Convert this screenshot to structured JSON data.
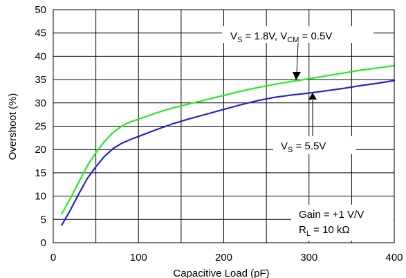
{
  "chart_data": {
    "type": "line",
    "xlabel": "Capacitive Load (pF)",
    "ylabel": "Overshoot (%)",
    "xlim": [
      0,
      400
    ],
    "ylim": [
      0,
      50
    ],
    "x_ticks": [
      0,
      100,
      200,
      300,
      400
    ],
    "y_ticks": [
      0,
      5,
      10,
      15,
      20,
      25,
      30,
      35,
      40,
      45,
      50
    ],
    "grid": true,
    "series": [
      {
        "name": "VS = 1.8V, VCM = 0.5V",
        "color": "#22ee22",
        "x": [
          10,
          20,
          30,
          40,
          50,
          60,
          70,
          80,
          90,
          100,
          120,
          140,
          160,
          180,
          200,
          220,
          240,
          260,
          280,
          300,
          320,
          340,
          360,
          380,
          400
        ],
        "y": [
          6.2,
          9.5,
          13.0,
          16.5,
          19.3,
          21.7,
          23.6,
          25.0,
          25.9,
          26.5,
          27.8,
          28.9,
          29.8,
          30.7,
          31.6,
          32.5,
          33.3,
          34.0,
          34.6,
          35.2,
          35.8,
          36.4,
          37.0,
          37.5,
          38.0
        ]
      },
      {
        "name": "VS = 5.5V",
        "color": "#2222cc",
        "x": [
          10,
          20,
          30,
          40,
          50,
          60,
          70,
          80,
          90,
          100,
          120,
          140,
          160,
          180,
          200,
          220,
          240,
          260,
          280,
          300,
          320,
          340,
          360,
          380,
          400
        ],
        "y": [
          3.8,
          7.0,
          10.5,
          13.8,
          16.3,
          18.5,
          20.2,
          21.3,
          22.1,
          22.8,
          24.2,
          25.5,
          26.6,
          27.6,
          28.6,
          29.6,
          30.5,
          31.2,
          31.7,
          32.1,
          32.6,
          33.1,
          33.7,
          34.2,
          34.8
        ]
      }
    ],
    "annotations": {
      "vs18": {
        "pre": "V",
        "sub1": "S",
        "mid": " = 1.8V, V",
        "sub2": "CM",
        "post": " = 0.5V"
      },
      "vs55": {
        "pre": "V",
        "sub1": "S",
        "post": " = 5.5V"
      },
      "gain": "Gain = +1 V/V",
      "rl": {
        "pre": "R",
        "sub1": "L",
        "post": " = 10 kΩ"
      }
    }
  }
}
